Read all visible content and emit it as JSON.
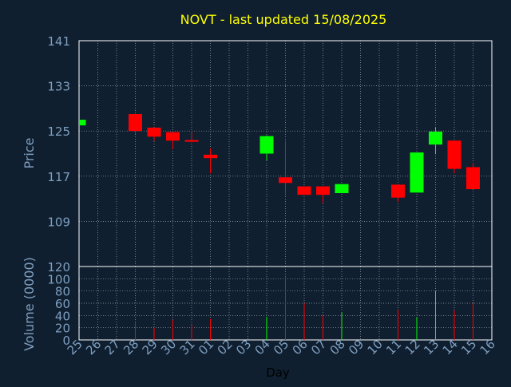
{
  "colors": {
    "background": "#0f1f30",
    "title": "#ffff00",
    "axis_text": "#7f9fbf",
    "frame": "#ffffff",
    "grid": "#ffffff",
    "up": "#00ff00",
    "down": "#ff0000",
    "xlabel": "#000000"
  },
  "chart_data": [
    {
      "type": "candlestick",
      "title": "NOVT - last updated 15/08/2025",
      "ylabel": "Price",
      "ylim": [
        101,
        141
      ],
      "yticks": [
        141,
        133,
        125,
        117,
        109
      ],
      "grid": true,
      "x": [
        "25",
        "26",
        "27",
        "28",
        "29",
        "30",
        "31",
        "01",
        "02",
        "03",
        "04",
        "05",
        "06",
        "07",
        "08",
        "09",
        "10",
        "11",
        "12",
        "13",
        "14",
        "15",
        "16"
      ],
      "candles": [
        {
          "day": "25",
          "open": 126.0,
          "high": 127.0,
          "low": 126.0,
          "close": 127.0
        },
        {
          "day": "28",
          "open": 128.0,
          "high": 128.0,
          "low": 124.5,
          "close": 125.0
        },
        {
          "day": "29",
          "open": 125.6,
          "high": 125.6,
          "low": 123.2,
          "close": 124.0
        },
        {
          "day": "30",
          "open": 124.8,
          "high": 124.8,
          "low": 121.8,
          "close": 123.3
        },
        {
          "day": "31",
          "open": 123.4,
          "high": 124.8,
          "low": 123.0,
          "close": 123.1
        },
        {
          "day": "01",
          "open": 120.8,
          "high": 121.9,
          "low": 117.5,
          "close": 120.2
        },
        {
          "day": "04",
          "open": 121.0,
          "high": 124.2,
          "low": 119.8,
          "close": 124.1
        },
        {
          "day": "05",
          "open": 116.8,
          "high": 123.3,
          "low": 113.6,
          "close": 115.8
        },
        {
          "day": "06",
          "open": 115.2,
          "high": 115.2,
          "low": 113.7,
          "close": 113.7
        },
        {
          "day": "07",
          "open": 115.2,
          "high": 115.2,
          "low": 112.2,
          "close": 113.7
        },
        {
          "day": "08",
          "open": 114.0,
          "high": 115.6,
          "low": 114.0,
          "close": 115.6
        },
        {
          "day": "11",
          "open": 115.5,
          "high": 115.5,
          "low": 112.4,
          "close": 113.2
        },
        {
          "day": "12",
          "open": 114.1,
          "high": 121.2,
          "low": 114.1,
          "close": 121.2
        },
        {
          "day": "13",
          "open": 122.6,
          "high": 125.6,
          "low": 120.9,
          "close": 124.9
        },
        {
          "day": "14",
          "open": 123.3,
          "high": 123.3,
          "low": 117.5,
          "close": 118.3
        },
        {
          "day": "15",
          "open": 118.6,
          "high": 119.4,
          "low": 114.7,
          "close": 114.7
        }
      ]
    },
    {
      "type": "bar",
      "ylabel": "Volume (0000)",
      "xlabel": "Day",
      "ylim": [
        0,
        120
      ],
      "yticks": [
        120,
        100,
        80,
        60,
        40,
        20,
        0
      ],
      "grid": true,
      "x": [
        "25",
        "26",
        "27",
        "28",
        "29",
        "30",
        "31",
        "01",
        "02",
        "03",
        "04",
        "05",
        "06",
        "07",
        "08",
        "09",
        "10",
        "11",
        "12",
        "13",
        "14",
        "15",
        "16"
      ],
      "bars": [
        {
          "day": "28",
          "value": 31,
          "direction": "down"
        },
        {
          "day": "29",
          "value": 20,
          "direction": "down"
        },
        {
          "day": "30",
          "value": 33,
          "direction": "down"
        },
        {
          "day": "31",
          "value": 24,
          "direction": "down"
        },
        {
          "day": "01",
          "value": 34,
          "direction": "down"
        },
        {
          "day": "04",
          "value": 38,
          "direction": "up"
        },
        {
          "day": "05",
          "value": 104,
          "direction": "down"
        },
        {
          "day": "06",
          "value": 60,
          "direction": "down"
        },
        {
          "day": "07",
          "value": 40,
          "direction": "down"
        },
        {
          "day": "08",
          "value": 45,
          "direction": "up"
        },
        {
          "day": "11",
          "value": 49,
          "direction": "down"
        },
        {
          "day": "12",
          "value": 37,
          "direction": "up"
        },
        {
          "day": "13",
          "value": 80,
          "direction": "up"
        },
        {
          "day": "14",
          "value": 48,
          "direction": "down"
        },
        {
          "day": "15",
          "value": 60,
          "direction": "down"
        }
      ]
    }
  ]
}
